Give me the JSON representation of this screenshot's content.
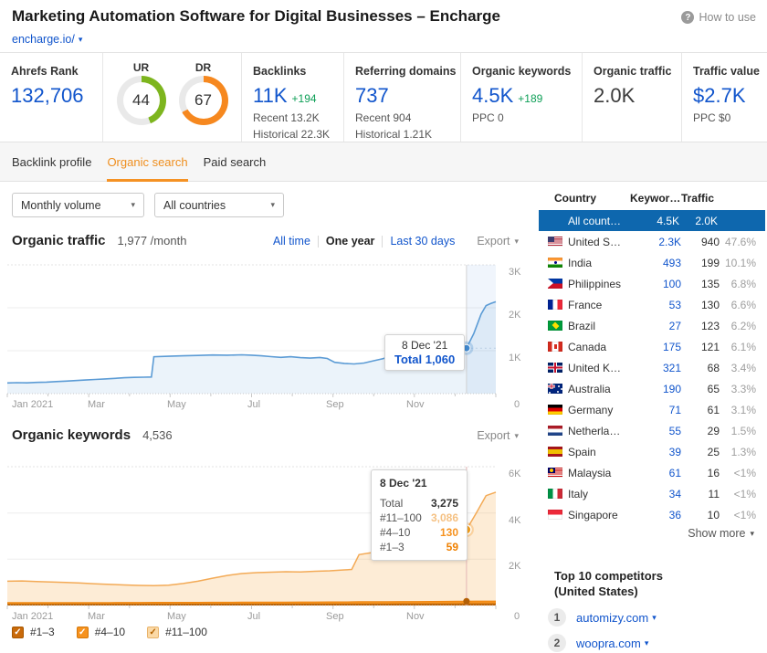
{
  "colors": {
    "accent_blue": "#1155cc",
    "delta_green": "#0e9f57",
    "donut_green": "#7db51e",
    "donut_orange": "#f6881f",
    "tab_orange": "#ef8e1d",
    "selected_row_blue": "#0e67ae",
    "traffic_line": "#5b9bd5",
    "kw_light": "#f3aa56",
    "kw_mid": "#f6921e",
    "kw_dark": "#c96a0a"
  },
  "header": {
    "title": "Marketing Automation Software for Digital Businesses – Encharge",
    "domain": "encharge.io/",
    "how_to_use": "How to use"
  },
  "metrics": {
    "ahrefs_rank": {
      "label": "Ahrefs Rank",
      "value": "132,706"
    },
    "ur": {
      "label": "UR",
      "value": 44
    },
    "dr": {
      "label": "DR",
      "value": 67
    },
    "backlinks": {
      "label": "Backlinks",
      "value": "11K",
      "delta": "+194",
      "recent": "Recent 13.2K",
      "historical": "Historical 22.3K"
    },
    "referring_domains": {
      "label": "Referring domains",
      "value": "737",
      "recent": "Recent 904",
      "historical": "Historical 1.21K"
    },
    "organic_keywords": {
      "label": "Organic keywords",
      "value": "4.5K",
      "delta": "+189",
      "sub": "PPC 0"
    },
    "organic_traffic": {
      "label": "Organic traffic",
      "value": "2.0K"
    },
    "traffic_value": {
      "label": "Traffic value",
      "value": "$2.7K",
      "sub": "PPC $0"
    }
  },
  "tabs": [
    {
      "label": "Backlink profile",
      "active": false
    },
    {
      "label": "Organic search",
      "active": true
    },
    {
      "label": "Paid search",
      "active": false
    }
  ],
  "filters": {
    "volume": "Monthly volume",
    "country": "All countries"
  },
  "traffic_section": {
    "title": "Organic traffic",
    "subtitle": "1,977 /month",
    "ranges": [
      "All time",
      "One year",
      "Last 30 days"
    ],
    "active_range": "One year",
    "export": "Export",
    "tooltip": {
      "date": "8 Dec '21",
      "label": "Total",
      "value": "1,060"
    }
  },
  "keywords_section": {
    "title": "Organic keywords",
    "subtitle": "4,536",
    "export": "Export",
    "tooltip": {
      "date": "8 Dec '21",
      "rows": [
        [
          "Total",
          "3,275"
        ],
        [
          "#11–100",
          "3,086"
        ],
        [
          "#4–10",
          "130"
        ],
        [
          "#1–3",
          "59"
        ]
      ]
    },
    "legend": [
      {
        "label": "#1–3",
        "checked": true,
        "color_key": "kw_dark"
      },
      {
        "label": "#4–10",
        "checked": true,
        "color_key": "kw_mid"
      },
      {
        "label": "#11–100",
        "checked": true,
        "color_key": "kw_light"
      }
    ]
  },
  "chart_data": [
    {
      "type": "area",
      "title": "Organic traffic",
      "xlabel": "",
      "ylabel": "",
      "x_tick_labels": [
        "Jan 2021",
        "Mar",
        "May",
        "Jul",
        "Sep",
        "Nov"
      ],
      "y_tick_labels": [
        "3K",
        "2K",
        "1K",
        "0"
      ],
      "ylim": [
        0,
        3000
      ],
      "grid": true,
      "marker": {
        "x": 0.94,
        "value": 1060,
        "date": "8 Dec '21"
      },
      "series": [
        {
          "name": "Organic traffic",
          "points": [
            [
              0,
              250
            ],
            [
              0.02,
              255
            ],
            [
              0.04,
              252
            ],
            [
              0.06,
              262
            ],
            [
              0.08,
              268
            ],
            [
              0.1,
              280
            ],
            [
              0.12,
              292
            ],
            [
              0.14,
              305
            ],
            [
              0.16,
              318
            ],
            [
              0.18,
              330
            ],
            [
              0.2,
              342
            ],
            [
              0.22,
              355
            ],
            [
              0.24,
              370
            ],
            [
              0.26,
              378
            ],
            [
              0.28,
              383
            ],
            [
              0.295,
              388
            ],
            [
              0.3,
              860
            ],
            [
              0.33,
              870
            ],
            [
              0.36,
              880
            ],
            [
              0.39,
              890
            ],
            [
              0.42,
              900
            ],
            [
              0.45,
              895
            ],
            [
              0.48,
              905
            ],
            [
              0.5,
              895
            ],
            [
              0.52,
              880
            ],
            [
              0.54,
              862
            ],
            [
              0.56,
              845
            ],
            [
              0.58,
              860
            ],
            [
              0.6,
              838
            ],
            [
              0.62,
              828
            ],
            [
              0.64,
              842
            ],
            [
              0.655,
              820
            ],
            [
              0.67,
              730
            ],
            [
              0.69,
              705
            ],
            [
              0.71,
              692
            ],
            [
              0.73,
              712
            ],
            [
              0.75,
              765
            ],
            [
              0.77,
              818
            ],
            [
              0.79,
              910
            ],
            [
              0.81,
              965
            ],
            [
              0.83,
              1015
            ],
            [
              0.85,
              1008
            ],
            [
              0.88,
              1030
            ],
            [
              0.91,
              1040
            ],
            [
              0.94,
              1060
            ],
            [
              0.955,
              1400
            ],
            [
              0.97,
              1850
            ],
            [
              0.98,
              2050
            ],
            [
              0.99,
              2100
            ],
            [
              1.0,
              2140
            ]
          ]
        }
      ]
    },
    {
      "type": "stacked-area",
      "title": "Organic keywords",
      "xlabel": "",
      "ylabel": "",
      "x_tick_labels": [
        "Jan 2021",
        "Mar",
        "May",
        "Jul",
        "Sep",
        "Nov"
      ],
      "y_tick_labels": [
        "6K",
        "4K",
        "2K",
        "0"
      ],
      "ylim": [
        0,
        6000
      ],
      "grid": true,
      "marker": {
        "x": 0.94,
        "total": 3275,
        "date": "8 Dec '21"
      },
      "x": [
        0,
        0.03,
        0.06,
        0.09,
        0.12,
        0.15,
        0.18,
        0.21,
        0.24,
        0.27,
        0.3,
        0.33,
        0.36,
        0.39,
        0.42,
        0.45,
        0.48,
        0.51,
        0.54,
        0.57,
        0.6,
        0.63,
        0.66,
        0.69,
        0.705,
        0.72,
        0.75,
        0.78,
        0.81,
        0.84,
        0.87,
        0.9,
        0.92,
        0.94,
        0.96,
        0.98,
        1.0
      ],
      "series": [
        {
          "name": "#1–3",
          "color_key": "kw_dark",
          "values": [
            40,
            40,
            41,
            41,
            42,
            42,
            43,
            43,
            44,
            44,
            45,
            45,
            46,
            46,
            47,
            47,
            48,
            48,
            49,
            49,
            50,
            50,
            51,
            51,
            52,
            52,
            53,
            53,
            54,
            54,
            55,
            56,
            57,
            59,
            60,
            60,
            60
          ]
        },
        {
          "name": "#4–10",
          "color_key": "kw_mid",
          "values": [
            85,
            85,
            86,
            86,
            87,
            87,
            88,
            88,
            90,
            90,
            92,
            92,
            94,
            94,
            96,
            96,
            98,
            98,
            100,
            100,
            104,
            104,
            108,
            108,
            110,
            112,
            114,
            116,
            118,
            120,
            122,
            125,
            128,
            130,
            132,
            133,
            133
          ]
        },
        {
          "name": "#11–100",
          "color_key": "kw_light",
          "values": [
            925,
            935,
            913,
            893,
            871,
            841,
            809,
            779,
            756,
            736,
            723,
            743,
            810,
            910,
            1037,
            1157,
            1234,
            1274,
            1291,
            1311,
            1296,
            1326,
            1341,
            1381,
            1398,
            2036,
            2133,
            2151,
            2178,
            2226,
            2243,
            2269,
            2415,
            3086,
            3808,
            4557,
            4707
          ]
        }
      ]
    }
  ],
  "country_table": {
    "headers": [
      "Country",
      "Keywor…",
      "Traffic"
    ],
    "all_row": {
      "name": "All count…",
      "keywords": "4.5K",
      "traffic": "2.0K"
    },
    "rows": [
      {
        "flag": "us",
        "name": "United S…",
        "keywords": "2.3K",
        "traffic": "940",
        "share": "47.6%"
      },
      {
        "flag": "in",
        "name": "India",
        "keywords": "493",
        "traffic": "199",
        "share": "10.1%"
      },
      {
        "flag": "ph",
        "name": "Philippines",
        "keywords": "100",
        "traffic": "135",
        "share": "6.8%"
      },
      {
        "flag": "fr",
        "name": "France",
        "keywords": "53",
        "traffic": "130",
        "share": "6.6%"
      },
      {
        "flag": "br",
        "name": "Brazil",
        "keywords": "27",
        "traffic": "123",
        "share": "6.2%"
      },
      {
        "flag": "ca",
        "name": "Canada",
        "keywords": "175",
        "traffic": "121",
        "share": "6.1%"
      },
      {
        "flag": "gb",
        "name": "United K…",
        "keywords": "321",
        "traffic": "68",
        "share": "3.4%"
      },
      {
        "flag": "au",
        "name": "Australia",
        "keywords": "190",
        "traffic": "65",
        "share": "3.3%"
      },
      {
        "flag": "de",
        "name": "Germany",
        "keywords": "71",
        "traffic": "61",
        "share": "3.1%"
      },
      {
        "flag": "nl",
        "name": "Netherla…",
        "keywords": "55",
        "traffic": "29",
        "share": "1.5%"
      },
      {
        "flag": "es",
        "name": "Spain",
        "keywords": "39",
        "traffic": "25",
        "share": "1.3%"
      },
      {
        "flag": "my",
        "name": "Malaysia",
        "keywords": "61",
        "traffic": "16",
        "share": "<1%"
      },
      {
        "flag": "it",
        "name": "Italy",
        "keywords": "34",
        "traffic": "11",
        "share": "<1%"
      },
      {
        "flag": "sg",
        "name": "Singapore",
        "keywords": "36",
        "traffic": "10",
        "share": "<1%"
      }
    ],
    "show_more": "Show more"
  },
  "competitors": {
    "title_line1": "Top 10 competitors",
    "title_line2": "(United States)",
    "items": [
      {
        "rank": "1",
        "domain": "automizy.com"
      },
      {
        "rank": "2",
        "domain": "woopra.com"
      }
    ]
  }
}
